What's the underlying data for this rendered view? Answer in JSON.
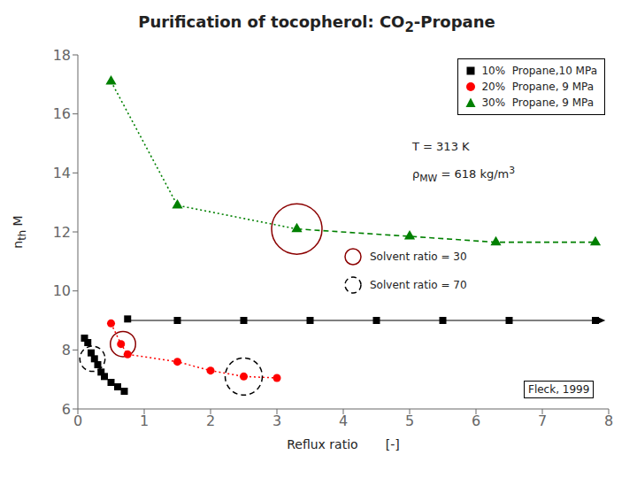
{
  "chart_data": {
    "type": "scatter",
    "title_parts": [
      {
        "text": "Purification of tocopherol: CO"
      },
      {
        "text": "2",
        "sub": true
      },
      {
        "text": "-Propane"
      }
    ],
    "xlabel": "Reflux ratio       [-]",
    "ylabel_parts": [
      {
        "text": "n"
      },
      {
        "text": "th",
        "sub": true
      },
      {
        "text": " M"
      }
    ],
    "xlim": [
      0,
      8
    ],
    "ylim": [
      6,
      18
    ],
    "xticks": [
      0,
      1,
      2,
      3,
      4,
      5,
      6,
      7,
      8
    ],
    "yticks": [
      6,
      8,
      10,
      12,
      14,
      16,
      18
    ],
    "grid": false,
    "legend": "upper right",
    "series": [
      {
        "name": "10%  Propane,10 MPa",
        "color": "black",
        "marker": "square",
        "x": [
          0.1,
          0.15,
          0.2,
          0.25,
          0.3,
          0.35,
          0.4,
          0.5,
          0.6,
          0.7,
          0.75,
          1.5,
          2.5,
          3.5,
          4.5,
          5.5,
          6.5,
          7.8
        ],
        "y": [
          8.4,
          8.25,
          7.9,
          7.7,
          7.5,
          7.25,
          7.1,
          6.9,
          6.75,
          6.6,
          9.05,
          9.0,
          9.0,
          9.0,
          9.0,
          9.0,
          9.0,
          9.0
        ]
      },
      {
        "name": "20%  Propane, 9 MPa",
        "color": "red",
        "marker": "circle",
        "line_style": "dotted",
        "x": [
          0.5,
          0.65,
          0.75,
          1.5,
          2.0,
          2.5,
          3.0
        ],
        "y": [
          8.9,
          8.2,
          7.85,
          7.6,
          7.3,
          7.1,
          7.05
        ]
      },
      {
        "name": "30%  Propane, 9 MPa",
        "color": "green",
        "marker": "triangle",
        "x": [
          0.5,
          1.5,
          3.3,
          5.0,
          6.3,
          7.8
        ],
        "y": [
          17.1,
          12.9,
          12.1,
          11.85,
          11.65,
          11.65
        ],
        "segments": [
          {
            "x_range": [
              0.5,
              3.3
            ],
            "line_style": "dotted"
          },
          {
            "x_range": [
              3.3,
              7.8
            ],
            "line_style": "dashed"
          }
        ]
      }
    ],
    "arrow": {
      "color": "black",
      "x": [
        0.75,
        7.95
      ],
      "y": [
        9.0,
        9.0
      ]
    },
    "circle_groups": [
      {
        "name": "Solvent ratio = 30",
        "color": "darkred",
        "line_style": "solid",
        "circles": [
          {
            "x": 3.3,
            "y": 12.1,
            "r": 0.38
          },
          {
            "x": 0.68,
            "y": 8.2,
            "r": 0.19
          }
        ]
      },
      {
        "name": "Solvent ratio = 70",
        "color": "black",
        "line_style": "dashed",
        "circles": [
          {
            "x": 0.22,
            "y": 7.7,
            "r": 0.19
          },
          {
            "x": 2.5,
            "y": 7.1,
            "r": 0.28
          }
        ]
      }
    ],
    "annotations": [
      {
        "parts": [
          {
            "text": "T = 313 K"
          }
        ]
      },
      {
        "parts": [
          {
            "text": "ρ"
          },
          {
            "text": "MW",
            "sub": true
          },
          {
            "text": " = 618 kg/m"
          },
          {
            "text": "3",
            "sup": true
          }
        ]
      }
    ],
    "source": "Fleck, 1999"
  }
}
